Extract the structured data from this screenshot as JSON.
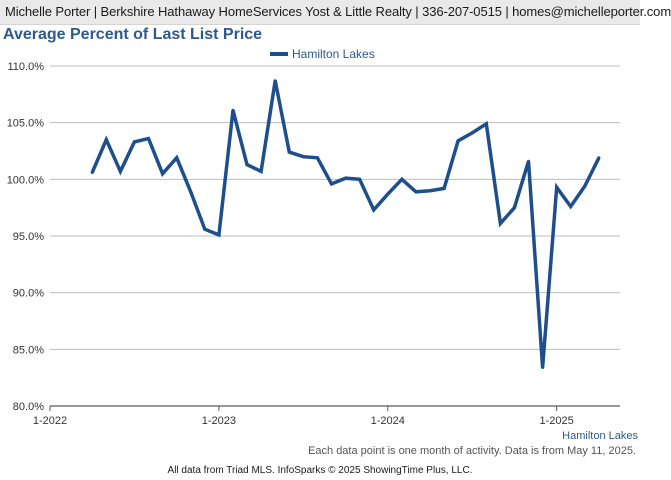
{
  "header": {
    "text": "Michelle Porter | Berkshire Hathaway HomeServices Yost & Little Realty | 336-207-0515 | homes@michelleporter.com"
  },
  "footer": {
    "note": "Each data point is one month of activity. Data is from May 11, 2025.",
    "copyright": "All data from Triad MLS. InfoSparks © 2025 ShowingTime Plus, LLC."
  },
  "colors": {
    "series": "#1f4e8c",
    "title": "#2d5a8a",
    "grid": "#bdbdbd",
    "axis": "#5a5a5a"
  },
  "chart_data": {
    "type": "line",
    "title": "Average Percent of Last List Price",
    "xlabel": "",
    "ylabel": "",
    "ylim": [
      80,
      110
    ],
    "y_ticks": [
      80,
      85,
      90,
      95,
      100,
      105,
      110
    ],
    "y_tick_labels": [
      "80.0%",
      "85.0%",
      "90.0%",
      "95.0%",
      "100.0%",
      "105.0%",
      "110.0%"
    ],
    "x_ticks": [
      "2022-01",
      "2023-01",
      "2024-01",
      "2025-01"
    ],
    "x_tick_labels": [
      "1-2022",
      "1-2023",
      "1-2024",
      "1-2025"
    ],
    "x_range": [
      "2022-01",
      "2025-05"
    ],
    "grid": true,
    "legend_position": "top-center",
    "axis_end_label": "Hamilton Lakes",
    "series": [
      {
        "name": "Hamilton Lakes",
        "points": [
          {
            "x": "2022-04",
            "y": 100.6
          },
          {
            "x": "2022-05",
            "y": 103.5
          },
          {
            "x": "2022-06",
            "y": 100.7
          },
          {
            "x": "2022-07",
            "y": 103.3
          },
          {
            "x": "2022-08",
            "y": 103.6
          },
          {
            "x": "2022-09",
            "y": 100.5
          },
          {
            "x": "2022-10",
            "y": 101.9
          },
          {
            "x": "2022-11",
            "y": 98.9
          },
          {
            "x": "2022-12",
            "y": 95.6
          },
          {
            "x": "2023-01",
            "y": 95.1
          },
          {
            "x": "2023-02",
            "y": 106.1
          },
          {
            "x": "2023-03",
            "y": 101.3
          },
          {
            "x": "2023-04",
            "y": 100.7
          },
          {
            "x": "2023-05",
            "y": 108.7
          },
          {
            "x": "2023-06",
            "y": 102.4
          },
          {
            "x": "2023-07",
            "y": 102.0
          },
          {
            "x": "2023-08",
            "y": 101.9
          },
          {
            "x": "2023-09",
            "y": 99.6
          },
          {
            "x": "2023-10",
            "y": 100.1
          },
          {
            "x": "2023-11",
            "y": 100.0
          },
          {
            "x": "2023-12",
            "y": 97.3
          },
          {
            "x": "2024-01",
            "y": 98.7
          },
          {
            "x": "2024-02",
            "y": 100.0
          },
          {
            "x": "2024-03",
            "y": 98.9
          },
          {
            "x": "2024-04",
            "y": 99.0
          },
          {
            "x": "2024-05",
            "y": 99.2
          },
          {
            "x": "2024-06",
            "y": 103.4
          },
          {
            "x": "2024-07",
            "y": 104.1
          },
          {
            "x": "2024-08",
            "y": 104.9
          },
          {
            "x": "2024-09",
            "y": 96.1
          },
          {
            "x": "2024-10",
            "y": 97.5
          },
          {
            "x": "2024-11",
            "y": 101.6
          },
          {
            "x": "2024-12",
            "y": 83.4
          },
          {
            "x": "2025-01",
            "y": 99.3
          },
          {
            "x": "2025-02",
            "y": 97.6
          },
          {
            "x": "2025-03",
            "y": 99.4
          },
          {
            "x": "2025-04",
            "y": 101.9
          }
        ]
      }
    ]
  }
}
